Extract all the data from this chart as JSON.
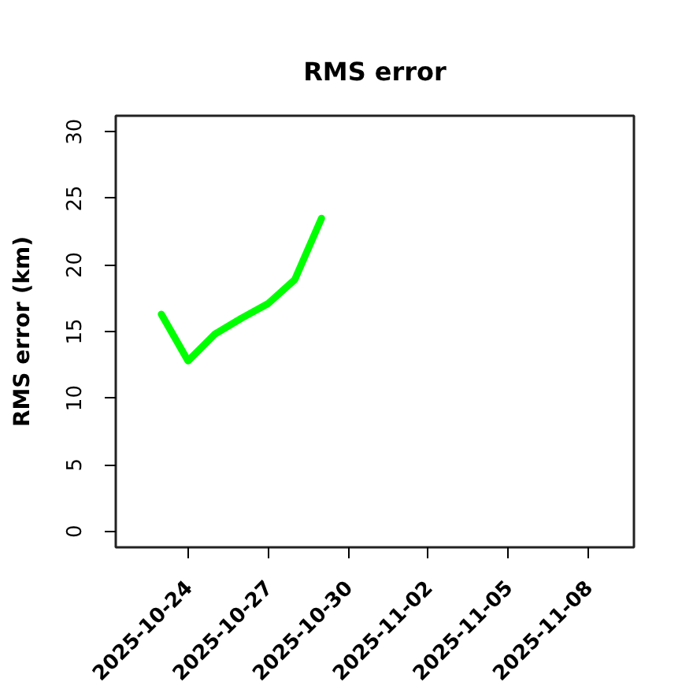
{
  "chart_data": {
    "type": "line",
    "title": "RMS error",
    "ylabel": "RMS error (km)",
    "x": [
      "2025-10-23",
      "2025-10-24",
      "2025-10-25",
      "2025-10-26",
      "2025-10-27",
      "2025-10-28",
      "2025-10-29"
    ],
    "series": [
      {
        "color": "#00ff00",
        "values": [
          16.3,
          12.8,
          14.8,
          16.0,
          17.1,
          18.9,
          23.5
        ]
      }
    ],
    "xlim": [
      "2025-10-21T07:00",
      "2025-11-09T17:00"
    ],
    "ylim": [
      -1.2,
      31.2
    ],
    "xticks": [
      "2025-10-24",
      "2025-10-27",
      "2025-10-30",
      "2025-11-02",
      "2025-11-05",
      "2025-11-08"
    ],
    "yticks": [
      0,
      5,
      10,
      15,
      20,
      25,
      30
    ],
    "line_style": "solid"
  }
}
